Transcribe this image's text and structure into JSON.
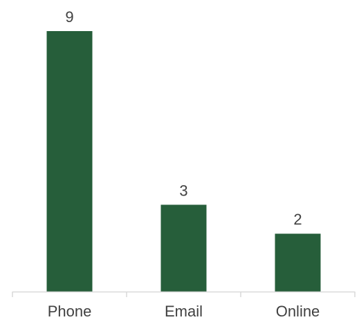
{
  "chart_data": {
    "type": "bar",
    "categories": [
      "Phone",
      "Email",
      "Online"
    ],
    "values": [
      9,
      3,
      2
    ],
    "data_labels": [
      "9",
      "3",
      "2"
    ],
    "title": "",
    "xlabel": "",
    "ylabel": "",
    "ylim": [
      0,
      9
    ],
    "grid": false,
    "legend": "none",
    "colors": {
      "bar": "#265E3A",
      "axis": "#D9D9D9",
      "text": "#404040"
    }
  }
}
